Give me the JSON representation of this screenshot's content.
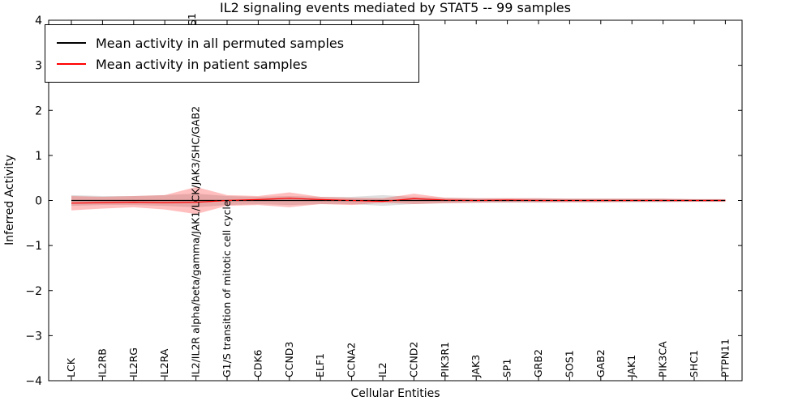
{
  "title": "IL2 signaling events mediated by STAT5 -- 99 samples",
  "legend": {
    "items": [
      {
        "label": "Mean activity in all permuted samples",
        "color": "#000000"
      },
      {
        "label": "Mean activity in patient samples",
        "color": "#ff0000"
      }
    ]
  },
  "chart_data": {
    "type": "line",
    "title": "IL2 signaling events mediated by STAT5 -- 99 samples",
    "xlabel": "Cellular Entities",
    "ylabel": "Inferred Activity",
    "ylim": [
      -4,
      4
    ],
    "yticks": [
      4,
      3,
      2,
      1,
      0,
      -1,
      -2,
      -3,
      -4
    ],
    "grid": false,
    "legend_position": "upper left",
    "categories": [
      "LCK",
      "IL2RB",
      "IL2RG",
      "IL2RA",
      "IL2/IL2R alpha/beta/gamma/JAK1/LCK/JAK3/SHC/GAB2",
      "G1/S transition of mitotic cell cycle",
      "CDK6",
      "CCND3",
      "ELF1",
      "CCNA2",
      "IL2",
      "CCND2",
      "PIK3R1",
      "JAK3",
      "SP1",
      "GRB2",
      "SOS1",
      "GAB2",
      "JAK1",
      "PIK3CA",
      "SHC1",
      "PTPN11"
    ],
    "x_overflow_fragment": {
      "text": "S1",
      "x": 237,
      "y": 32
    },
    "series": [
      {
        "name": "Mean activity in all permuted samples",
        "color": "#000000",
        "values": [
          0,
          0,
          0,
          0,
          0,
          0,
          0,
          0,
          0,
          0,
          0,
          0,
          0,
          0,
          0,
          0,
          0,
          0,
          0,
          0,
          0,
          0
        ]
      },
      {
        "name": "Mean activity in patient samples",
        "color": "#ff0000",
        "values": [
          -0.06,
          -0.05,
          -0.04,
          -0.05,
          -0.04,
          0.0,
          0.02,
          0.05,
          0.02,
          0.0,
          -0.02,
          0.04,
          0.01,
          0.0,
          0.01,
          0.0,
          0.0,
          0.0,
          0.0,
          0.0,
          0.0,
          0.0
        ]
      }
    ],
    "bands": [
      {
        "name": "permuted-std-band",
        "color": "#808080",
        "opacity": 0.25,
        "upper": [
          0.12,
          0.1,
          0.1,
          0.12,
          0.15,
          0.1,
          0.08,
          0.1,
          0.08,
          0.08,
          0.12,
          0.08,
          0.06,
          0.05,
          0.05,
          0.05,
          0.04,
          0.04,
          0.04,
          0.04,
          0.03,
          0.03
        ],
        "lower": [
          -0.12,
          -0.1,
          -0.1,
          -0.12,
          -0.15,
          -0.1,
          -0.08,
          -0.1,
          -0.08,
          -0.08,
          -0.12,
          -0.08,
          -0.06,
          -0.05,
          -0.05,
          -0.05,
          -0.04,
          -0.04,
          -0.04,
          -0.04,
          -0.03,
          -0.03
        ]
      },
      {
        "name": "patient-std-band",
        "color": "#ff0000",
        "opacity": 0.25,
        "upper": [
          0.1,
          0.08,
          0.1,
          0.12,
          0.3,
          0.12,
          0.1,
          0.18,
          0.08,
          0.06,
          0.05,
          0.15,
          0.06,
          0.05,
          0.05,
          0.05,
          0.04,
          0.04,
          0.04,
          0.04,
          0.03,
          0.03
        ],
        "lower": [
          -0.22,
          -0.18,
          -0.15,
          -0.2,
          -0.3,
          -0.12,
          -0.1,
          -0.15,
          -0.08,
          -0.1,
          -0.05,
          -0.08,
          -0.06,
          -0.05,
          -0.04,
          -0.04,
          -0.04,
          -0.04,
          -0.03,
          -0.03,
          -0.03,
          -0.03
        ]
      }
    ]
  }
}
